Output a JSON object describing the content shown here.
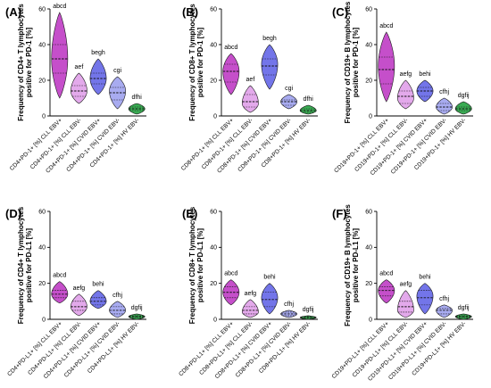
{
  "chart_data": [
    {
      "type": "violin",
      "panel_label": "(A)",
      "ylabel_lines": [
        "Frequency of CD4+ T lymphocytes",
        "positive for PD-1 [%]"
      ],
      "ylim": [
        0,
        60
      ],
      "yticks": [
        0,
        20,
        40,
        60
      ],
      "groups": [
        {
          "label": "CD4+PD-1+ [%] CLL EBV+",
          "color": "#c246c7",
          "min": 10,
          "max": 58,
          "q1": 24,
          "median": 32,
          "q3": 40,
          "mode": 32,
          "sig": "abcd"
        },
        {
          "label": "CD4+PD-1+ [%] CLL EBV-",
          "color": "#e2a4ea",
          "min": 7,
          "max": 24,
          "q1": 11,
          "median": 14,
          "q3": 17,
          "mode": 14,
          "sig": "aef"
        },
        {
          "label": "CD4+PD-1+ [%] CVID EBV+",
          "color": "#6b6ee8",
          "min": 12,
          "max": 32,
          "q1": 18,
          "median": 21,
          "q3": 24,
          "mode": 21,
          "sig": "begh"
        },
        {
          "label": "CD4+PD-1+ [%] CVID EBV-",
          "color": "#a3a6ef",
          "min": 4,
          "max": 22,
          "q1": 9,
          "median": 13,
          "q3": 16,
          "mode": 14,
          "sig": "cgi"
        },
        {
          "label": "CD4+PD-1+ [%] HV EBV-",
          "color": "#2fa64a",
          "min": 1,
          "max": 7,
          "q1": 3,
          "median": 4,
          "q3": 5,
          "mode": 4,
          "sig": "dfhi"
        }
      ]
    },
    {
      "type": "violin",
      "panel_label": "(B)",
      "ylabel_lines": [
        "Frequency of CD8+ T lymphocytes",
        "positive for PD-1 [%]"
      ],
      "ylim": [
        0,
        60
      ],
      "yticks": [
        0,
        20,
        40,
        60
      ],
      "groups": [
        {
          "label": "CD8+PD-1+ [%] CLL EBV+",
          "color": "#c246c7",
          "min": 12,
          "max": 35,
          "q1": 19,
          "median": 25,
          "q3": 29,
          "mode": 25,
          "sig": "abcd"
        },
        {
          "label": "CD8+PD-1+ [%] CLL EBV-",
          "color": "#e2a4ea",
          "min": 2,
          "max": 17,
          "q1": 5,
          "median": 8,
          "q3": 12,
          "mode": 7,
          "sig": "aef"
        },
        {
          "label": "CD8+PD-1+ [%] CVID EBV+",
          "color": "#6b6ee8",
          "min": 15,
          "max": 40,
          "q1": 23,
          "median": 28,
          "q3": 32,
          "mode": 29,
          "sig": "begh"
        },
        {
          "label": "CD8+PD-1+ [%] CVID EBV-",
          "color": "#a3a6ef",
          "min": 4,
          "max": 12,
          "q1": 6,
          "median": 8,
          "q3": 9,
          "mode": 8,
          "sig": "cgi"
        },
        {
          "label": "CD8+PD-1+ [%] HV EBV-",
          "color": "#2fa64a",
          "min": 1,
          "max": 6,
          "q1": 2,
          "median": 3,
          "q3": 4,
          "mode": 3,
          "sig": "dfhi"
        }
      ]
    },
    {
      "type": "violin",
      "panel_label": "(C)",
      "ylabel_lines": [
        "Frequency of CD19+ B lymphocytes",
        "positive for PD-1 [%]"
      ],
      "ylim": [
        0,
        60
      ],
      "yticks": [
        0,
        20,
        40,
        60
      ],
      "groups": [
        {
          "label": "CD19+PD-1+ [%] CLL EBV+",
          "color": "#c246c7",
          "min": 8,
          "max": 47,
          "q1": 18,
          "median": 26,
          "q3": 33,
          "mode": 28,
          "sig": "abcd"
        },
        {
          "label": "CD19+PD-1+ [%] CLL EBV-",
          "color": "#e2a4ea",
          "min": 4,
          "max": 20,
          "q1": 7,
          "median": 11,
          "q3": 14,
          "mode": 10,
          "sig": "aefg"
        },
        {
          "label": "CD19+PD-1+ [%] CVID EBV+",
          "color": "#6b6ee8",
          "min": 8,
          "max": 20,
          "q1": 11,
          "median": 14,
          "q3": 16,
          "mode": 14,
          "sig": "behi"
        },
        {
          "label": "CD19+PD-1+ [%] CVID EBV-",
          "color": "#a3a6ef",
          "min": 1,
          "max": 10,
          "q1": 3,
          "median": 5,
          "q3": 7,
          "mode": 5,
          "sig": "cfhj"
        },
        {
          "label": "CD19+PD-1+ [%] HV EBV-",
          "color": "#2fa64a",
          "min": 1,
          "max": 8,
          "q1": 3,
          "median": 4,
          "q3": 5,
          "mode": 4,
          "sig": "dgfij"
        }
      ]
    },
    {
      "type": "violin",
      "panel_label": "(D)",
      "ylabel_lines": [
        "Frequency of CD4+ T lymphocytes",
        "positive for PD-L1 [%]"
      ],
      "ylim": [
        0,
        60
      ],
      "yticks": [
        0,
        20,
        40,
        60
      ],
      "groups": [
        {
          "label": "CD4+PD-L1+ [%] CLL EBV+",
          "color": "#c246c7",
          "min": 9,
          "max": 21,
          "q1": 12,
          "median": 14,
          "q3": 16,
          "mode": 14,
          "sig": "abcd"
        },
        {
          "label": "CD4+PD-L1+ [%] CLL EBV-",
          "color": "#e2a4ea",
          "min": 2,
          "max": 14,
          "q1": 5,
          "median": 7,
          "q3": 10,
          "mode": 7,
          "sig": "aefg"
        },
        {
          "label": "CD4+PD-L1+ [%] CVID EBV+",
          "color": "#6b6ee8",
          "min": 6,
          "max": 16,
          "q1": 8,
          "median": 10,
          "q3": 12,
          "mode": 10,
          "sig": "behi"
        },
        {
          "label": "CD4+PD-L1+ [%] CVID EBV-",
          "color": "#a3a6ef",
          "min": 1,
          "max": 10,
          "q1": 3,
          "median": 5,
          "q3": 7,
          "mode": 5,
          "sig": "cfhj"
        },
        {
          "label": "CD4+PD-L1+ [%] HV EBV-",
          "color": "#2fa64a",
          "min": 0,
          "max": 3,
          "q1": 1,
          "median": 1.5,
          "q3": 2,
          "mode": 1.5,
          "sig": "dgfij"
        }
      ]
    },
    {
      "type": "violin",
      "panel_label": "(E)",
      "ylabel_lines": [
        "Frequency of CD8+ T lymphocytes",
        "positive for PD-L1 [%]"
      ],
      "ylim": [
        0,
        60
      ],
      "yticks": [
        0,
        20,
        40,
        60
      ],
      "groups": [
        {
          "label": "CD8+PD-L1+ [%] CLL EBV+",
          "color": "#c246c7",
          "min": 8,
          "max": 22,
          "q1": 12,
          "median": 15,
          "q3": 18,
          "mode": 15,
          "sig": "abcd"
        },
        {
          "label": "CD8+PD-L1+ [%] CLL EBV-",
          "color": "#e2a4ea",
          "min": 1,
          "max": 11,
          "q1": 3,
          "median": 5,
          "q3": 7,
          "mode": 4,
          "sig": "aefg"
        },
        {
          "label": "CD8+PD-L1+ [%] CVID EBV+",
          "color": "#6b6ee8",
          "min": 3,
          "max": 20,
          "q1": 7,
          "median": 11,
          "q3": 15,
          "mode": 12,
          "sig": "behi"
        },
        {
          "label": "CD8+PD-L1+ [%] CVID EBV-",
          "color": "#a3a6ef",
          "min": 1,
          "max": 5,
          "q1": 2,
          "median": 3,
          "q3": 4,
          "mode": 3,
          "sig": "cfhj"
        },
        {
          "label": "CD8+PD-L1+ [%] HV EBV-",
          "color": "#2fa64a",
          "min": 0,
          "max": 2,
          "q1": 0.5,
          "median": 1,
          "q3": 1.5,
          "mode": 1,
          "sig": "dgfij"
        }
      ]
    },
    {
      "type": "violin",
      "panel_label": "(F)",
      "ylabel_lines": [
        "Frequency of CD19+ B lymphocytes",
        "positive for PD-L1 [%]"
      ],
      "ylim": [
        0,
        60
      ],
      "yticks": [
        0,
        20,
        40,
        60
      ],
      "groups": [
        {
          "label": "CD19+PD-L1+ [%] CLL EBV+",
          "color": "#c246c7",
          "min": 9,
          "max": 22,
          "q1": 13,
          "median": 16,
          "q3": 18,
          "mode": 16,
          "sig": "abcd"
        },
        {
          "label": "CD19+PD-L1+ [%] CLL EBV-",
          "color": "#e2a4ea",
          "min": 1,
          "max": 16,
          "q1": 4,
          "median": 7,
          "q3": 10,
          "mode": 5,
          "sig": "aefg"
        },
        {
          "label": "CD19+PD-L1+ [%] CVID EBV+",
          "color": "#6b6ee8",
          "min": 3,
          "max": 20,
          "q1": 8,
          "median": 12,
          "q3": 16,
          "mode": 13,
          "sig": "behi"
        },
        {
          "label": "CD19+PD-L1+ [%] CVID EBV-",
          "color": "#a3a6ef",
          "min": 1,
          "max": 8,
          "q1": 3,
          "median": 5,
          "q3": 6,
          "mode": 5,
          "sig": "cfhj"
        },
        {
          "label": "CD19+PD-L1+ [%] HV EBV-",
          "color": "#2fa64a",
          "min": 0,
          "max": 3,
          "q1": 1,
          "median": 1.5,
          "q3": 2,
          "mode": 1.5,
          "sig": "dgfij"
        }
      ]
    }
  ]
}
